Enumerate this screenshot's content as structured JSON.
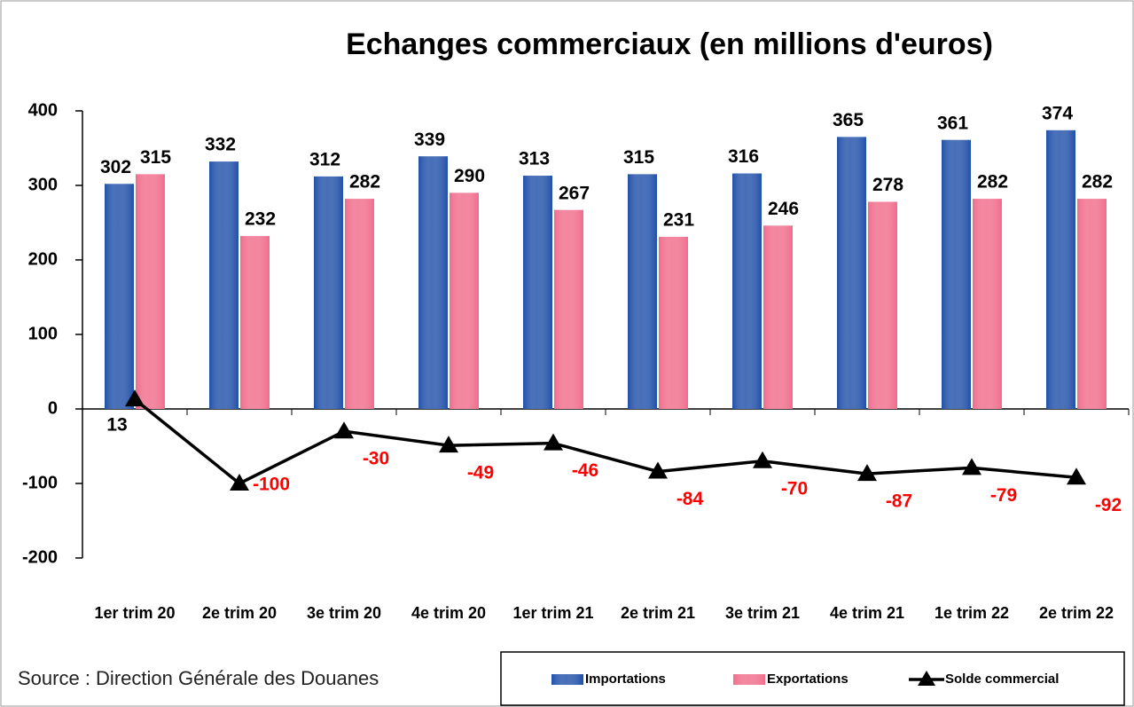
{
  "chart_data": {
    "type": "bar",
    "title": "Echanges commerciaux (en millions d'euros)",
    "source": "Source : Direction Générale des Douanes",
    "categories": [
      "1er trim 20",
      "2e trim 20",
      "3e trim 20",
      "4e trim 20",
      "1er trim 21",
      "2e trim 21",
      "3e trim 21",
      "4e trim 21",
      "1e trim 22",
      "2e trim 22"
    ],
    "series": [
      {
        "name": "Importations",
        "type": "bar",
        "color": "#1f4fa8",
        "label_color": "#000000",
        "values": [
          302,
          332,
          312,
          339,
          313,
          315,
          316,
          365,
          361,
          374
        ]
      },
      {
        "name": "Exportations",
        "type": "bar",
        "color": "#f06b8a",
        "label_color": "#000000",
        "values": [
          315,
          232,
          282,
          290,
          267,
          231,
          246,
          278,
          282,
          282
        ]
      },
      {
        "name": "Solde commercial",
        "type": "line",
        "color": "#000000",
        "label_colors": [
          "#000000",
          "#ff0000",
          "#ff0000",
          "#ff0000",
          "#ff0000",
          "#ff0000",
          "#ff0000",
          "#ff0000",
          "#ff0000",
          "#ff0000"
        ],
        "values": [
          13,
          -100,
          -30,
          -49,
          -46,
          -84,
          -70,
          -87,
          -79,
          -92
        ]
      }
    ],
    "ylim": [
      -200,
      400
    ],
    "yticks": [
      -200,
      -100,
      0,
      100,
      200,
      300,
      400
    ]
  }
}
